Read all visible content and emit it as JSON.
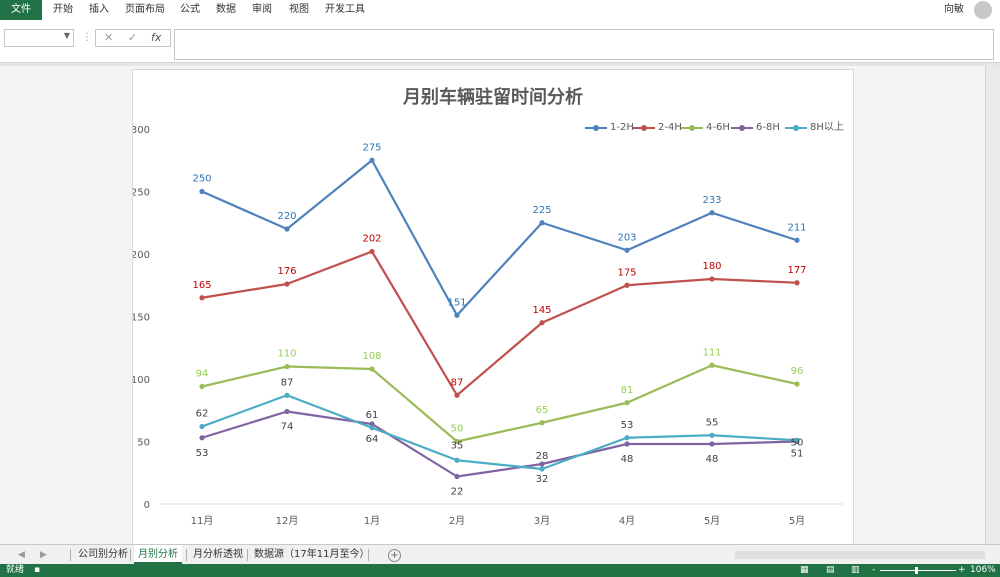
{
  "ribbon": {
    "file_tab": "文件",
    "tabs": [
      "开始",
      "插入",
      "页面布局",
      "公式",
      "数据",
      "审阅",
      "视图",
      "开发工具"
    ],
    "user_name": "向敏"
  },
  "formula_bar": {
    "cancel": "✕",
    "enter": "✓",
    "fx": "fx",
    "sep": "⋮"
  },
  "sheet_tabs": {
    "prev": "◀",
    "next": "▶",
    "tabs": [
      "公司别分析",
      "月别分析",
      "月分析透视",
      "数据源（17年11月至今）"
    ],
    "active": "月别分析",
    "add_label": "+"
  },
  "status_bar": {
    "ready": "就绪",
    "zoom": "106%",
    "minus": "-",
    "plus": "+"
  },
  "colors": {
    "excel_green": "#217346"
  },
  "chart_data": {
    "type": "line",
    "title": "月别车辆驻留时间分析",
    "categories": [
      "11月",
      "12月",
      "1月",
      "2月",
      "3月",
      "4月",
      "5月",
      "5月"
    ],
    "y_ticks": [
      "0",
      "50",
      "100",
      "150",
      "200",
      "250",
      "300"
    ],
    "ylim": [
      0,
      300
    ],
    "legend_position": "top-right",
    "series": [
      {
        "name": "1-2H",
        "color": "#4f81bd",
        "label_color": "#2e75b6",
        "values": [
          250,
          220,
          275,
          151,
          225,
          203,
          233,
          211
        ]
      },
      {
        "name": "2-4H",
        "color": "#c0504d",
        "label_color": "#c00000",
        "values": [
          165,
          176,
          202,
          87,
          145,
          175,
          180,
          177
        ]
      },
      {
        "name": "4-6H",
        "color": "#9bbb59",
        "label_color": "#92d050",
        "values": [
          94,
          110,
          108,
          50,
          65,
          81,
          111,
          96
        ]
      },
      {
        "name": "6-8H",
        "color": "#8064a2",
        "label_color": "#404040",
        "values": [
          53,
          74,
          64,
          22,
          32,
          48,
          48,
          50
        ]
      },
      {
        "name": "8H以上",
        "color": "#4bacc6",
        "label_color": "#404040",
        "values": [
          62,
          87,
          61,
          35,
          28,
          53,
          55,
          51
        ]
      }
    ],
    "data_labels": [
      {
        "series": 0,
        "point": 0,
        "text": "250"
      },
      {
        "series": 0,
        "point": 1,
        "text": "220"
      },
      {
        "series": 0,
        "point": 2,
        "text": "275"
      },
      {
        "series": 0,
        "point": 3,
        "text": "151"
      },
      {
        "series": 0,
        "point": 4,
        "text": "225"
      },
      {
        "series": 0,
        "point": 5,
        "text": "203"
      },
      {
        "series": 0,
        "point": 6,
        "text": "233"
      },
      {
        "series": 0,
        "point": 7,
        "text": "211"
      },
      {
        "series": 1,
        "point": 0,
        "text": "165"
      },
      {
        "series": 1,
        "point": 1,
        "text": "176"
      },
      {
        "series": 1,
        "point": 2,
        "text": "202"
      },
      {
        "series": 1,
        "point": 3,
        "text": "87"
      },
      {
        "series": 1,
        "point": 4,
        "text": "145"
      },
      {
        "series": 1,
        "point": 5,
        "text": "175"
      },
      {
        "series": 1,
        "point": 6,
        "text": "180"
      },
      {
        "series": 1,
        "point": 7,
        "text": "177"
      },
      {
        "series": 2,
        "point": 0,
        "text": "94"
      },
      {
        "series": 2,
        "point": 1,
        "text": "110"
      },
      {
        "series": 2,
        "point": 2,
        "text": "108"
      },
      {
        "series": 2,
        "point": 3,
        "text": "50"
      },
      {
        "series": 2,
        "point": 4,
        "text": "65"
      },
      {
        "series": 2,
        "point": 5,
        "text": "81"
      },
      {
        "series": 2,
        "point": 6,
        "text": "111"
      },
      {
        "series": 2,
        "point": 7,
        "text": "96"
      },
      {
        "series": 3,
        "point": 0,
        "text": "53"
      },
      {
        "series": 3,
        "point": 1,
        "text": "74"
      },
      {
        "series": 3,
        "point": 2,
        "text": "64"
      },
      {
        "series": 3,
        "point": 3,
        "text": "22"
      },
      {
        "series": 3,
        "point": 4,
        "text": "32"
      },
      {
        "series": 3,
        "point": 5,
        "text": "48"
      },
      {
        "series": 3,
        "point": 6,
        "text": "48"
      },
      {
        "series": 3,
        "point": 7,
        "text": "50"
      },
      {
        "series": 4,
        "point": 0,
        "text": "62"
      },
      {
        "series": 4,
        "point": 1,
        "text": "87"
      },
      {
        "series": 4,
        "point": 2,
        "text": "61"
      },
      {
        "series": 4,
        "point": 3,
        "text": "35"
      },
      {
        "series": 4,
        "point": 4,
        "text": "28"
      },
      {
        "series": 4,
        "point": 5,
        "text": "53"
      },
      {
        "series": 4,
        "point": 6,
        "text": "55"
      },
      {
        "series": 4,
        "point": 7,
        "text": "51"
      }
    ]
  }
}
